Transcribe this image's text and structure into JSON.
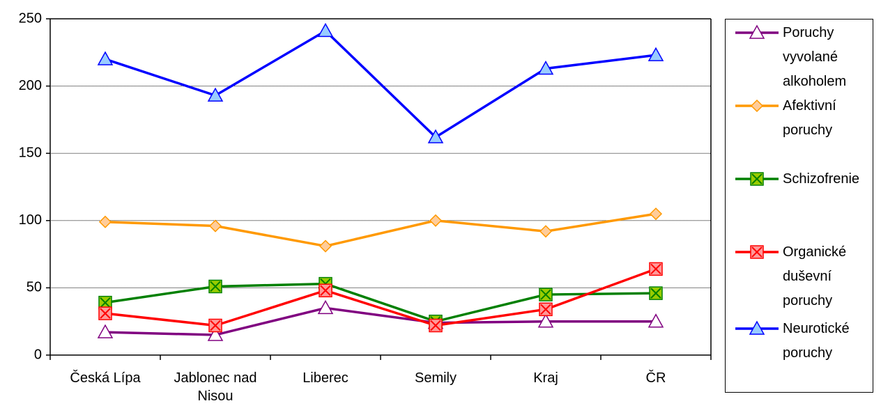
{
  "chart_data": {
    "type": "line",
    "categories": [
      "Česká Lípa",
      "Jablonec nad Nisou",
      "Liberec",
      "Semily",
      "Kraj",
      "ČR"
    ],
    "ylim": [
      0,
      250
    ],
    "yticks": [
      0,
      50,
      100,
      150,
      200,
      250
    ],
    "grid": true,
    "series": [
      {
        "name": "Poruchy vyvolané alkoholem",
        "color": "#800080",
        "marker": "triangle",
        "marker_fill": "#ffffff",
        "values": [
          17,
          15,
          35,
          24,
          25,
          25
        ]
      },
      {
        "name": "Afektivní poruchy",
        "color": "#ff9900",
        "marker": "diamond",
        "marker_fill": "#ffcc99",
        "values": [
          99,
          96,
          81,
          100,
          92,
          105
        ]
      },
      {
        "name": "Schizofrenie",
        "color": "#008000",
        "marker": "square-x",
        "marker_fill": "#99cc00",
        "values": [
          39,
          51,
          53,
          25,
          45,
          46
        ]
      },
      {
        "name": "Organické duševní poruchy",
        "color": "#ff0000",
        "marker": "square-x",
        "marker_fill": "#ff9999",
        "values": [
          31,
          22,
          48,
          22,
          34,
          64
        ]
      },
      {
        "name": "Neurotické poruchy",
        "color": "#0000ff",
        "marker": "triangle",
        "marker_fill": "#99ccff",
        "values": [
          220,
          193,
          241,
          162,
          213,
          223
        ]
      }
    ]
  }
}
